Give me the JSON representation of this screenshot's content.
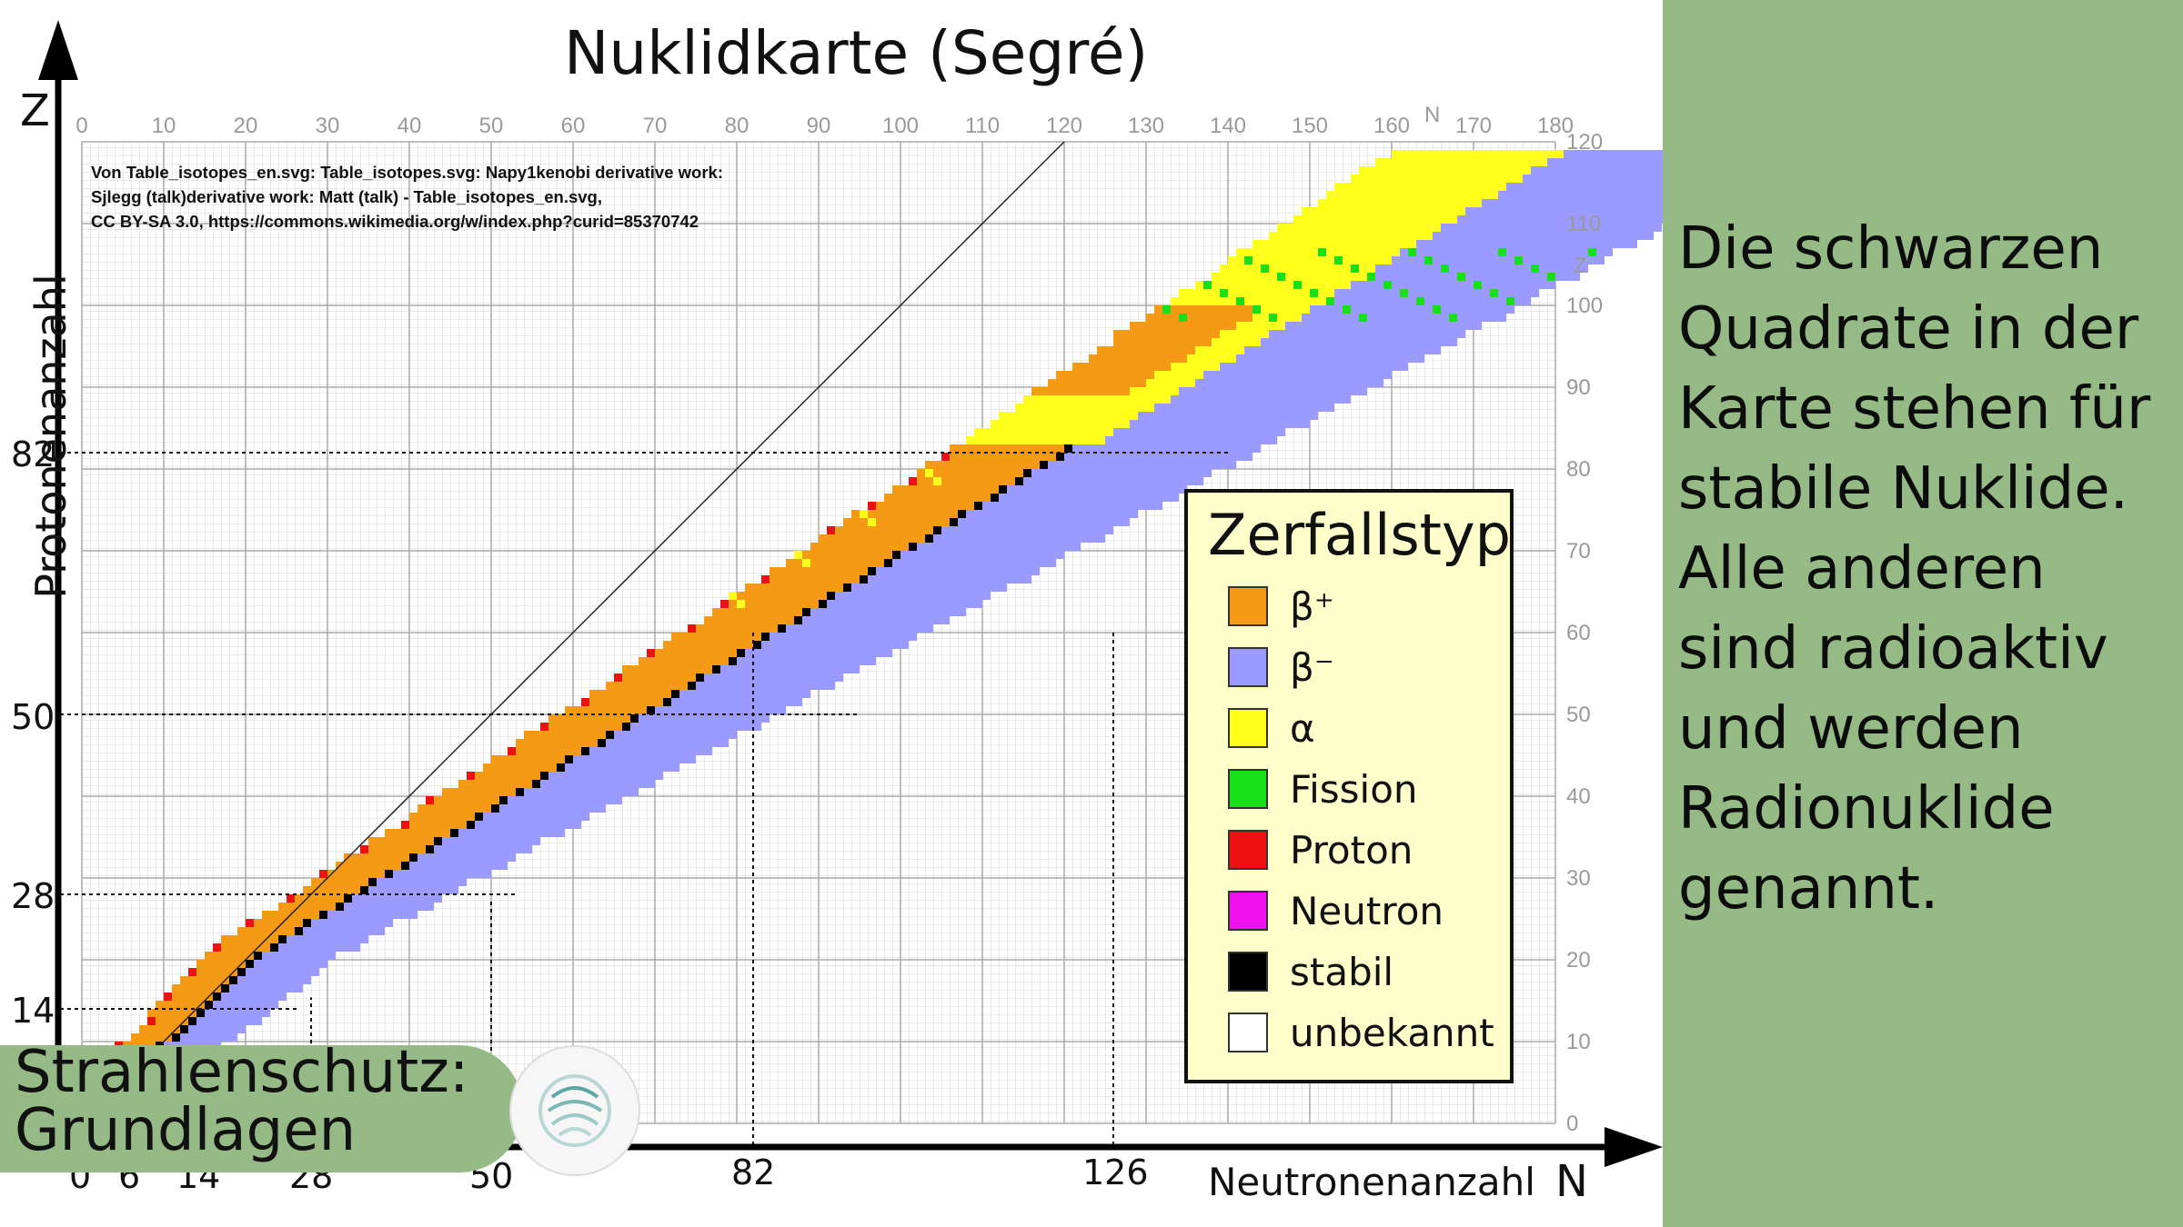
{
  "title": "Nuklidkarte (Segré)",
  "axes": {
    "y_label": "Protonenanzahl",
    "y_letter": "Z",
    "x_label": "Neutronenanzahl",
    "x_letter": "N",
    "grid_n_letter": "N",
    "grid_z_letter": "Z",
    "top_ticks": [
      "0",
      "10",
      "20",
      "30",
      "40",
      "50",
      "60",
      "70",
      "80",
      "90",
      "100",
      "110",
      "120",
      "130",
      "140",
      "150",
      "160",
      "170",
      "180"
    ],
    "right_ticks": [
      "0",
      "10",
      "20",
      "30",
      "40",
      "50",
      "60",
      "70",
      "80",
      "90",
      "100",
      "110",
      "120"
    ],
    "magic_z": [
      "14",
      "28",
      "50",
      "82"
    ],
    "magic_n": [
      "0",
      "6",
      "14",
      "28",
      "50",
      "82",
      "126"
    ]
  },
  "attribution": [
    "Von Table_isotopes_en.svg: Table_isotopes.svg: Napy1kenobi derivative work:",
    "Sjlegg (talk)derivative work: Matt (talk) - Table_isotopes_en.svg,",
    "CC BY-SA 3.0, https://commons.wikimedia.org/w/index.php?curid=85370742"
  ],
  "legend": {
    "title": "Zerfallstyp",
    "items": [
      {
        "label": "β⁺",
        "color": "#f59a14"
      },
      {
        "label": "β⁻",
        "color": "#9b9bff"
      },
      {
        "label": "α",
        "color": "#ffff1e"
      },
      {
        "label": "Fission",
        "color": "#18e018"
      },
      {
        "label": "Proton",
        "color": "#ee1111"
      },
      {
        "label": "Neutron",
        "color": "#ee11ee"
      },
      {
        "label": "stabil",
        "color": "#000000"
      },
      {
        "label": "unbekannt",
        "color": "#ffffff"
      }
    ]
  },
  "side_text": {
    "lines": [
      "Die schwarzen",
      "Quadrate in der",
      "Karte stehen für",
      "stabile Nuklide.",
      "Alle anderen",
      "sind radioaktiv",
      "und werden",
      "Radionuklide",
      "genannt."
    ]
  },
  "badge": {
    "line1": "Strahlenschutz:",
    "line2": "Grundlagen"
  },
  "colors": {
    "panel_green": "#96ba85",
    "beta_plus": "#f59a14",
    "beta_minus": "#9b9bff",
    "alpha": "#ffff1e",
    "fission": "#18e018",
    "proton": "#ee1111",
    "neutron": "#ee11ee",
    "stable": "#000000",
    "legend_bg": "#ffffcc"
  }
}
